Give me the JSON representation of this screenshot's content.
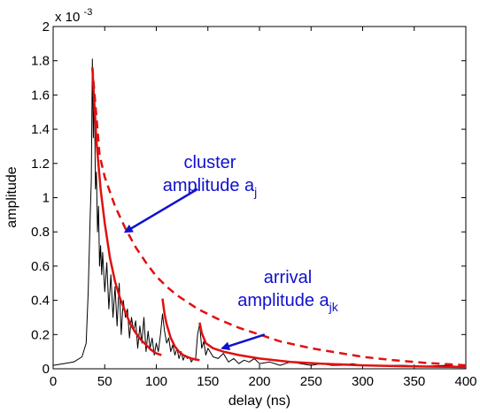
{
  "chart_data": {
    "type": "line",
    "xlabel": "delay (ns)",
    "ylabel": "amplitude",
    "xlim": [
      0,
      400
    ],
    "ylim": [
      0,
      2
    ],
    "y_multiplier_label": "x 10",
    "y_multiplier_exponent": "-3",
    "x_ticks": [
      "0",
      "50",
      "100",
      "150",
      "200",
      "250",
      "300",
      "350",
      "400"
    ],
    "x_tick_values": [
      0,
      50,
      100,
      150,
      200,
      250,
      300,
      350,
      400
    ],
    "y_ticks": [
      "0",
      "0.2",
      "0.4",
      "0.6",
      "0.8",
      "1",
      "1.2",
      "1.4",
      "1.6",
      "1.8",
      "2"
    ],
    "y_tick_values": [
      0,
      0.2,
      0.4,
      0.6,
      0.8,
      1.0,
      1.2,
      1.4,
      1.6,
      1.8,
      2.0
    ],
    "grid": false,
    "series": [
      {
        "style": "measured",
        "color": "#000000",
        "x": [
          0,
          10,
          20,
          28,
          32,
          34,
          36,
          37,
          38,
          39,
          40,
          41,
          42,
          43,
          44,
          45,
          46,
          47,
          48,
          50,
          52,
          54,
          56,
          58,
          60,
          62,
          64,
          66,
          68,
          70,
          72,
          74,
          76,
          78,
          80,
          82,
          84,
          86,
          88,
          90,
          92,
          94,
          96,
          98,
          100,
          102,
          104,
          106,
          108,
          110,
          112,
          114,
          116,
          118,
          120,
          122,
          124,
          126,
          128,
          130,
          132,
          134,
          136,
          138,
          140,
          142,
          144,
          146,
          148,
          150,
          155,
          160,
          165,
          170,
          175,
          180,
          185,
          190,
          195,
          200,
          210,
          220,
          230,
          240,
          250,
          260,
          270,
          280,
          290,
          300,
          320,
          340,
          360,
          380,
          400
        ],
        "y": [
          0.02,
          0.03,
          0.04,
          0.07,
          0.15,
          0.45,
          0.9,
          1.1,
          1.81,
          1.35,
          1.6,
          1.05,
          1.15,
          0.8,
          0.95,
          0.6,
          0.72,
          0.55,
          0.68,
          0.45,
          0.62,
          0.35,
          0.55,
          0.3,
          0.48,
          0.25,
          0.5,
          0.2,
          0.4,
          0.3,
          0.35,
          0.18,
          0.3,
          0.22,
          0.28,
          0.12,
          0.25,
          0.15,
          0.3,
          0.1,
          0.22,
          0.12,
          0.18,
          0.08,
          0.15,
          0.1,
          0.2,
          0.32,
          0.22,
          0.15,
          0.18,
          0.1,
          0.14,
          0.08,
          0.12,
          0.06,
          0.1,
          0.05,
          0.08,
          0.06,
          0.07,
          0.04,
          0.06,
          0.05,
          0.2,
          0.26,
          0.12,
          0.16,
          0.08,
          0.12,
          0.07,
          0.06,
          0.09,
          0.04,
          0.06,
          0.03,
          0.05,
          0.04,
          0.06,
          0.03,
          0.04,
          0.02,
          0.04,
          0.03,
          0.02,
          0.03,
          0.02,
          0.02,
          0.03,
          0.02,
          0.02,
          0.02,
          0.015,
          0.02,
          0.01
        ]
      },
      {
        "style": "arrival-decay-1",
        "color": "#e01010",
        "x": [
          38,
          42,
          46,
          50,
          55,
          60,
          65,
          70,
          75,
          80,
          85,
          90,
          95,
          100,
          105
        ],
        "y": [
          1.76,
          1.33,
          1.05,
          0.85,
          0.65,
          0.51,
          0.41,
          0.33,
          0.26,
          0.21,
          0.17,
          0.14,
          0.11,
          0.09,
          0.08
        ]
      },
      {
        "style": "arrival-decay-2",
        "color": "#e01010",
        "x": [
          106,
          108,
          110,
          114,
          118,
          122,
          126,
          130,
          134,
          138,
          142
        ],
        "y": [
          0.41,
          0.32,
          0.26,
          0.18,
          0.13,
          0.1,
          0.08,
          0.07,
          0.06,
          0.055,
          0.05
        ]
      },
      {
        "style": "arrival-decay-3",
        "color": "#e01010",
        "x": [
          142,
          144,
          148,
          155,
          165,
          180,
          200,
          230,
          260,
          300,
          340,
          380,
          400
        ],
        "y": [
          0.27,
          0.21,
          0.15,
          0.12,
          0.1,
          0.08,
          0.06,
          0.04,
          0.03,
          0.02,
          0.015,
          0.012,
          0.01
        ]
      },
      {
        "style": "cluster-envelope-dashed",
        "color": "#e01010",
        "x": [
          38,
          45,
          50,
          60,
          70,
          80,
          90,
          100,
          110,
          120,
          140,
          160,
          180,
          200,
          220,
          250,
          280,
          300,
          330,
          360,
          400
        ],
        "y": [
          1.76,
          1.25,
          1.12,
          0.95,
          0.82,
          0.71,
          0.62,
          0.54,
          0.48,
          0.43,
          0.35,
          0.29,
          0.24,
          0.2,
          0.16,
          0.12,
          0.09,
          0.07,
          0.05,
          0.035,
          0.02
        ]
      }
    ],
    "annotations": [
      {
        "lines": [
          "cluster",
          "amplitude a"
        ],
        "subscript": "j",
        "color": "#1010d0",
        "arrow_from": [
          140,
          1.05
        ],
        "arrow_to": [
          70,
          0.8
        ]
      },
      {
        "lines": [
          "arrival",
          "amplitude a"
        ],
        "subscript": "jk",
        "color": "#1010d0",
        "arrow_from": [
          205,
          0.2
        ],
        "arrow_to": [
          164,
          0.12
        ]
      }
    ]
  }
}
